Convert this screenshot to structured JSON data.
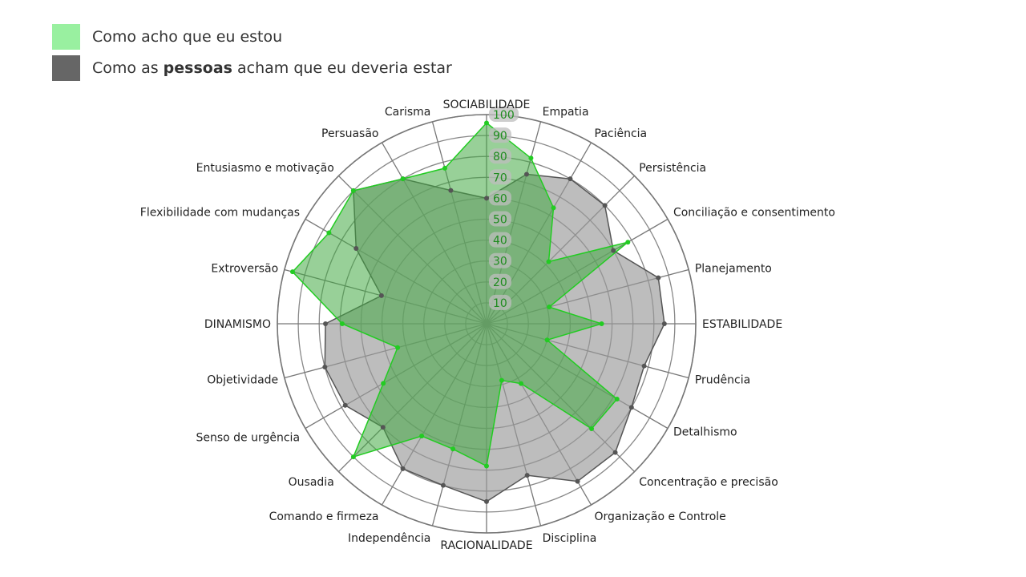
{
  "legend": {
    "items": [
      {
        "key": "self",
        "text_before": "Como acho que eu estou",
        "bold": "",
        "text_after": "",
        "color": "#99f0a0"
      },
      {
        "key": "others",
        "text_before": "Como as ",
        "bold": "pessoas",
        "text_after": " acham que eu deveria estar",
        "color": "#666666"
      }
    ]
  },
  "chart_data": {
    "type": "radar",
    "categories": [
      "SOCIABILIDADE",
      "Empatia",
      "Paciência",
      "Persistência",
      "Conciliação e consentimento",
      "Planejamento",
      "ESTABILIDADE",
      "Prudência",
      "Detalhismo",
      "Concentração e precisão",
      "Organização e Controle",
      "Disciplina",
      "RACIONALIDADE",
      "Independência",
      "Comando e firmeza",
      "Ousadia",
      "Senso de urgência",
      "Objetividade",
      "DINAMISMO",
      "Extroversão",
      "Flexibilidade com mudanças",
      "Entusiasmo e motivação",
      "Persuasão",
      "Carisma"
    ],
    "ticks": [
      10,
      20,
      30,
      40,
      50,
      60,
      70,
      80,
      90,
      100
    ],
    "rlim": [
      0,
      100
    ],
    "series": [
      {
        "name": "Como as pessoas acham que eu deveria estar",
        "color": "#555555",
        "fill": "#999999",
        "fill_opacity": 0.65,
        "values": [
          60,
          74,
          80,
          80,
          70,
          85,
          85,
          78,
          80,
          87,
          87,
          75,
          85,
          80,
          80,
          70,
          78,
          80,
          77,
          52,
          72,
          90,
          80,
          66
        ]
      },
      {
        "name": "Como acho que eu estou",
        "color": "#22cc22",
        "fill": "#44aa44",
        "fill_opacity": 0.55,
        "values": [
          96,
          82,
          64,
          42,
          78,
          31,
          55,
          30,
          72,
          71,
          33,
          28,
          68,
          62,
          62,
          90,
          57,
          44,
          69,
          96,
          87,
          90,
          80,
          77
        ]
      }
    ]
  }
}
